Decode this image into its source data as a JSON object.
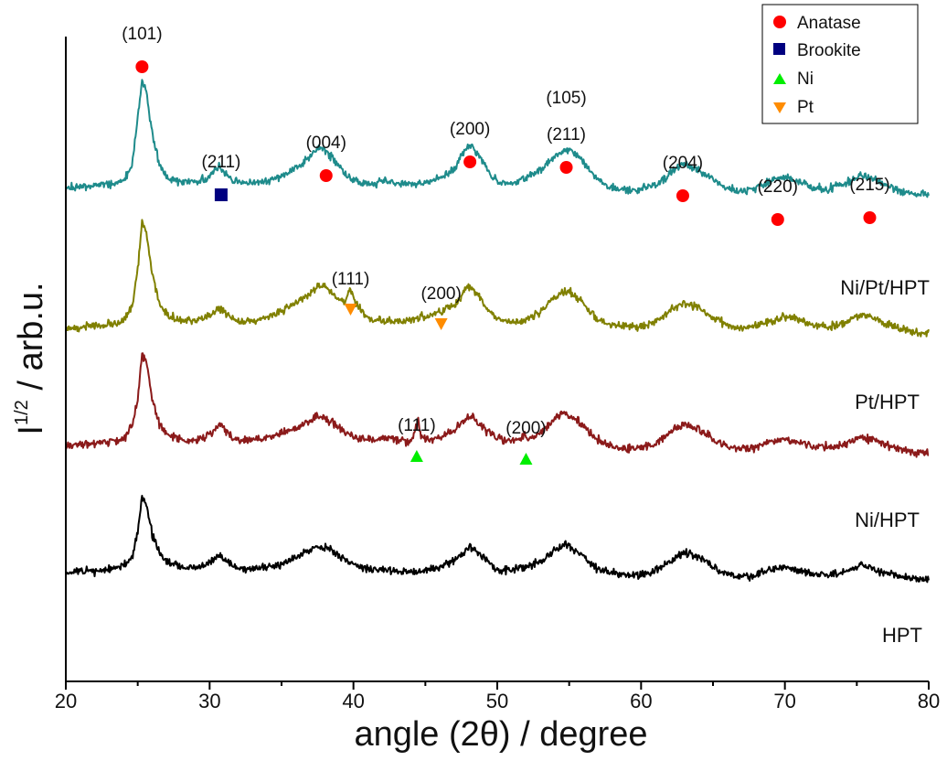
{
  "chart_data": {
    "type": "line",
    "xlabel": "angle (2θ) / degree",
    "ylabel_base": "I",
    "ylabel_sup": "1/2",
    "ylabel_rest": " / arb.u.",
    "xlim": [
      20,
      80
    ],
    "x_ticks": [
      20,
      30,
      40,
      50,
      60,
      70,
      80
    ],
    "y_ticks_shown": false,
    "grid": false,
    "legend_position": "top-right",
    "legend": [
      {
        "label": "Anatase",
        "marker": "circle",
        "color": "#ff0000"
      },
      {
        "label": "Brookite",
        "marker": "square",
        "color": "#000080"
      },
      {
        "label": "Ni",
        "marker": "triangle-up",
        "color": "#00ee00"
      },
      {
        "label": "Pt",
        "marker": "triangle-down",
        "color": "#ff8c00"
      }
    ],
    "series": [
      {
        "name": "HPT",
        "color": "#000000",
        "offset": 0,
        "seed": 11,
        "points": [
          [
            20,
            19
          ],
          [
            21,
            20
          ],
          [
            22,
            21
          ],
          [
            23,
            22
          ],
          [
            24,
            26
          ],
          [
            24.6,
            36
          ],
          [
            25,
            62
          ],
          [
            25.3,
            102
          ],
          [
            25.6,
            94
          ],
          [
            26,
            62
          ],
          [
            26.5,
            40
          ],
          [
            27,
            31
          ],
          [
            28,
            25
          ],
          [
            29,
            24
          ],
          [
            29.8,
            27
          ],
          [
            30.7,
            38
          ],
          [
            31.5,
            28
          ],
          [
            32,
            24
          ],
          [
            33,
            23
          ],
          [
            34,
            24
          ],
          [
            35,
            29
          ],
          [
            36.3,
            39
          ],
          [
            37.5,
            48
          ],
          [
            38,
            47
          ],
          [
            38.8,
            40
          ],
          [
            39.6,
            31
          ],
          [
            40.5,
            25
          ],
          [
            41.5,
            22
          ],
          [
            42.3,
            22
          ],
          [
            43,
            21
          ],
          [
            44,
            20
          ],
          [
            45,
            21
          ],
          [
            46,
            25
          ],
          [
            47,
            32
          ],
          [
            48,
            46
          ],
          [
            48.3,
            45
          ],
          [
            49,
            36
          ],
          [
            49.7,
            26
          ],
          [
            50.3,
            21
          ],
          [
            51,
            22
          ],
          [
            52,
            25
          ],
          [
            53,
            31
          ],
          [
            54,
            43
          ],
          [
            54.7,
            50
          ],
          [
            55.5,
            44
          ],
          [
            56.3,
            32
          ],
          [
            57,
            23
          ],
          [
            58,
            18
          ],
          [
            59,
            16
          ],
          [
            60,
            17
          ],
          [
            61,
            21
          ],
          [
            62,
            31
          ],
          [
            63,
            41
          ],
          [
            64,
            36
          ],
          [
            65,
            26
          ],
          [
            66,
            17
          ],
          [
            67,
            14
          ],
          [
            68,
            17
          ],
          [
            69,
            22
          ],
          [
            70,
            25
          ],
          [
            71,
            22
          ],
          [
            72,
            18
          ],
          [
            73,
            16
          ],
          [
            74,
            19
          ],
          [
            75.3,
            27
          ],
          [
            76,
            24
          ],
          [
            77,
            19
          ],
          [
            78,
            14
          ],
          [
            79,
            12
          ],
          [
            80,
            12
          ]
        ]
      },
      {
        "name": "Ni/HPT",
        "color": "#8b1a1a",
        "offset": 140,
        "seed": 23,
        "points": [
          [
            20,
            18
          ],
          [
            21,
            19
          ],
          [
            22,
            20
          ],
          [
            23,
            21
          ],
          [
            24,
            25
          ],
          [
            24.6,
            38
          ],
          [
            25,
            70
          ],
          [
            25.3,
            118
          ],
          [
            25.6,
            108
          ],
          [
            26,
            70
          ],
          [
            26.5,
            42
          ],
          [
            27,
            30
          ],
          [
            28,
            24
          ],
          [
            29,
            23
          ],
          [
            29.8,
            28
          ],
          [
            30.7,
            40
          ],
          [
            31.5,
            28
          ],
          [
            32,
            24
          ],
          [
            33,
            24
          ],
          [
            34,
            26
          ],
          [
            35,
            31
          ],
          [
            36.3,
            40
          ],
          [
            37.5,
            50
          ],
          [
            38,
            48
          ],
          [
            38.8,
            40
          ],
          [
            39.6,
            31
          ],
          [
            40.5,
            25
          ],
          [
            41.5,
            24
          ],
          [
            42.3,
            27
          ],
          [
            43,
            24
          ],
          [
            44,
            22
          ],
          [
            44.3,
            34
          ],
          [
            44.5,
            46
          ],
          [
            44.7,
            30
          ],
          [
            45,
            24
          ],
          [
            46,
            26
          ],
          [
            47,
            34
          ],
          [
            48,
            50
          ],
          [
            48.3,
            48
          ],
          [
            49,
            37
          ],
          [
            49.7,
            28
          ],
          [
            50.3,
            24
          ],
          [
            51,
            22
          ],
          [
            51.7,
            24
          ],
          [
            51.9,
            34
          ],
          [
            52.1,
            24
          ],
          [
            53,
            32
          ],
          [
            54,
            46
          ],
          [
            54.7,
            53
          ],
          [
            55.5,
            46
          ],
          [
            56.3,
            34
          ],
          [
            57,
            24
          ],
          [
            58,
            17
          ],
          [
            59,
            15
          ],
          [
            60,
            15
          ],
          [
            61,
            20
          ],
          [
            62,
            32
          ],
          [
            63,
            42
          ],
          [
            64,
            36
          ],
          [
            65,
            25
          ],
          [
            66,
            17
          ],
          [
            67,
            14
          ],
          [
            68,
            16
          ],
          [
            69,
            21
          ],
          [
            70,
            25
          ],
          [
            71,
            21
          ],
          [
            72,
            17
          ],
          [
            73,
            16
          ],
          [
            74,
            19
          ],
          [
            75.3,
            27
          ],
          [
            76,
            25
          ],
          [
            77,
            19
          ],
          [
            78,
            14
          ],
          [
            79,
            10
          ],
          [
            80,
            9
          ]
        ]
      },
      {
        "name": "Pt/HPT",
        "color": "#808000",
        "offset": 270,
        "seed": 37,
        "points": [
          [
            20,
            16
          ],
          [
            21,
            17
          ],
          [
            22,
            19
          ],
          [
            23,
            20
          ],
          [
            24,
            24
          ],
          [
            24.6,
            40
          ],
          [
            25,
            80
          ],
          [
            25.3,
            133
          ],
          [
            25.6,
            120
          ],
          [
            26,
            76
          ],
          [
            26.5,
            44
          ],
          [
            27,
            31
          ],
          [
            28,
            25
          ],
          [
            29,
            24
          ],
          [
            29.8,
            28
          ],
          [
            30.7,
            38
          ],
          [
            31.5,
            28
          ],
          [
            32,
            24
          ],
          [
            33,
            25
          ],
          [
            34,
            28
          ],
          [
            35,
            34
          ],
          [
            36.3,
            46
          ],
          [
            37.5,
            63
          ],
          [
            38,
            60
          ],
          [
            38.8,
            50
          ],
          [
            39.4,
            45
          ],
          [
            39.8,
            58
          ],
          [
            40.2,
            42
          ],
          [
            40.8,
            30
          ],
          [
            41.5,
            26
          ],
          [
            42.3,
            24
          ],
          [
            43,
            24
          ],
          [
            44,
            26
          ],
          [
            45,
            29
          ],
          [
            46,
            34
          ],
          [
            46.4,
            38
          ],
          [
            47,
            40
          ],
          [
            48,
            63
          ],
          [
            48.3,
            60
          ],
          [
            49,
            45
          ],
          [
            49.7,
            31
          ],
          [
            50.3,
            24
          ],
          [
            51,
            22
          ],
          [
            52,
            26
          ],
          [
            53,
            34
          ],
          [
            54,
            50
          ],
          [
            54.7,
            58
          ],
          [
            55.5,
            51
          ],
          [
            56.3,
            37
          ],
          [
            57,
            26
          ],
          [
            58,
            20
          ],
          [
            59,
            18
          ],
          [
            60,
            18
          ],
          [
            61,
            23
          ],
          [
            62,
            35
          ],
          [
            63,
            44
          ],
          [
            64,
            38
          ],
          [
            65,
            28
          ],
          [
            66,
            20
          ],
          [
            67,
            17
          ],
          [
            68,
            19
          ],
          [
            69,
            24
          ],
          [
            70,
            29
          ],
          [
            71,
            25
          ],
          [
            72,
            19
          ],
          [
            73,
            17
          ],
          [
            74,
            22
          ],
          [
            75.3,
            31
          ],
          [
            76,
            28
          ],
          [
            77,
            21
          ],
          [
            78,
            16
          ],
          [
            79,
            12
          ],
          [
            80,
            11
          ]
        ]
      },
      {
        "name": "Ni/Pt/HPT",
        "color": "#1e8b8b",
        "offset": 420,
        "seed": 53,
        "points": [
          [
            20,
            20
          ],
          [
            21,
            21
          ],
          [
            22,
            22
          ],
          [
            23,
            23
          ],
          [
            24,
            27
          ],
          [
            24.6,
            45
          ],
          [
            25,
            95
          ],
          [
            25.3,
            138
          ],
          [
            25.6,
            125
          ],
          [
            26,
            80
          ],
          [
            26.5,
            45
          ],
          [
            27,
            31
          ],
          [
            28,
            26
          ],
          [
            29,
            26
          ],
          [
            29.8,
            31
          ],
          [
            30.7,
            43
          ],
          [
            31.5,
            30
          ],
          [
            32,
            25
          ],
          [
            33,
            25
          ],
          [
            34,
            27
          ],
          [
            35,
            32
          ],
          [
            36.3,
            45
          ],
          [
            37.5,
            62
          ],
          [
            38,
            61
          ],
          [
            38.8,
            48
          ],
          [
            39.6,
            32
          ],
          [
            40.5,
            25
          ],
          [
            41.5,
            25
          ],
          [
            42.3,
            28
          ],
          [
            43,
            25
          ],
          [
            44,
            24
          ],
          [
            45,
            25
          ],
          [
            46,
            30
          ],
          [
            47,
            40
          ],
          [
            48,
            67
          ],
          [
            48.3,
            65
          ],
          [
            49,
            48
          ],
          [
            49.7,
            31
          ],
          [
            50.3,
            25
          ],
          [
            51,
            25
          ],
          [
            52,
            30
          ],
          [
            53,
            39
          ],
          [
            54,
            54
          ],
          [
            54.7,
            63
          ],
          [
            55.5,
            56
          ],
          [
            56.3,
            42
          ],
          [
            57,
            29
          ],
          [
            58,
            20
          ],
          [
            59,
            18
          ],
          [
            60,
            18
          ],
          [
            61,
            23
          ],
          [
            62,
            35
          ],
          [
            63,
            46
          ],
          [
            64,
            40
          ],
          [
            65,
            29
          ],
          [
            66,
            19
          ],
          [
            67,
            16
          ],
          [
            68,
            20
          ],
          [
            69,
            27
          ],
          [
            70,
            32
          ],
          [
            71,
            27
          ],
          [
            72,
            20
          ],
          [
            73,
            18
          ],
          [
            74,
            23
          ],
          [
            75.3,
            34
          ],
          [
            76,
            30
          ],
          [
            77,
            23
          ],
          [
            78,
            17
          ],
          [
            79,
            13
          ],
          [
            80,
            12
          ]
        ]
      }
    ],
    "peak_markers": [
      {
        "x": 25.3,
        "y_level": 672,
        "marker": "circle",
        "color": "#ff0000",
        "label": "(101)",
        "label_above": 30
      },
      {
        "x": 30.8,
        "y_level": 532,
        "marker": "square",
        "color": "#000080",
        "label": "(211)",
        "label_above": 30
      },
      {
        "x": 38.1,
        "y_level": 553,
        "marker": "circle",
        "color": "#ff0000",
        "label": "(004)",
        "label_above": 30
      },
      {
        "x": 48.1,
        "y_level": 568,
        "marker": "circle",
        "color": "#ff0000",
        "label": "(200)",
        "label_above": 30
      },
      {
        "x": 54.8,
        "y_level": 562,
        "marker": "circle",
        "color": "#ff0000",
        "label": "(105)",
        "label_above": 70,
        "label2": "(211)",
        "label2_above": 30
      },
      {
        "x": 62.9,
        "y_level": 531,
        "marker": "circle",
        "color": "#ff0000",
        "label": "(204)",
        "label_above": 30
      },
      {
        "x": 69.5,
        "y_level": 505,
        "marker": "circle",
        "color": "#ff0000",
        "label": "(220)",
        "label_above": 30
      },
      {
        "x": 75.9,
        "y_level": 507,
        "marker": "circle",
        "color": "#ff0000",
        "label": "(215)",
        "label_above": 30
      },
      {
        "x": 39.8,
        "y_level": 407,
        "marker": "triangle-down",
        "color": "#ff8c00",
        "label": "(111)",
        "label_above": 27
      },
      {
        "x": 46.1,
        "y_level": 391,
        "marker": "triangle-down",
        "color": "#ff8c00",
        "label": "(200)",
        "label_above": 27
      },
      {
        "x": 44.4,
        "y_level": 246,
        "marker": "triangle-up",
        "color": "#00ee00",
        "label": "(111)",
        "label_above": 28
      },
      {
        "x": 52.0,
        "y_level": 243,
        "marker": "triangle-up",
        "color": "#00ee00",
        "label": "(200)",
        "label_above": 28
      }
    ],
    "series_labels": [
      "Ni/Pt/HPT",
      "Pt/HPT",
      "Ni/HPT",
      "HPT"
    ]
  }
}
